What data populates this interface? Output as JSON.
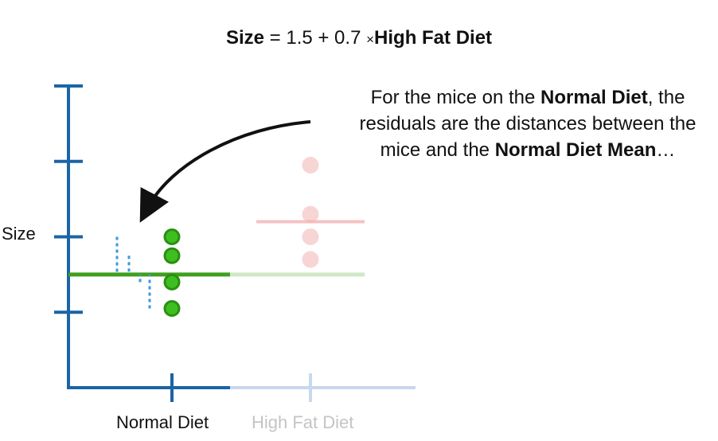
{
  "equation": {
    "lhs": "Size",
    "equals": "= 1.5 + 0.7",
    "times": "×",
    "rhs": "High Fat Diet"
  },
  "annotation": {
    "line1_pre": "For the mice on the ",
    "line1_bold": "Normal Diet",
    "line1_post": ", the",
    "line2": "residuals are the distances between the",
    "line3_pre": "mice and the ",
    "line3_bold": "Normal Diet Mean",
    "line3_post": "…"
  },
  "chart_data": {
    "type": "scatter",
    "ylabel": "Size",
    "categories": [
      "Normal Diet",
      "High Fat Diet"
    ],
    "highlighted_category": "Normal Diet",
    "ylim": [
      0,
      4
    ],
    "y_ticks": [
      1,
      2,
      3,
      4
    ],
    "y_tick_labels": {
      "2": "Size"
    },
    "series": [
      {
        "category": "Normal Diet",
        "values": [
          2.0,
          1.75,
          1.4,
          1.05
        ],
        "mean": 1.5,
        "color": "#3fbf1f",
        "stroke": "#2a8f12",
        "opacity": 1.0
      },
      {
        "category": "High Fat Diet",
        "values": [
          2.95,
          2.3,
          2.0,
          1.7
        ],
        "mean": 2.2,
        "color": "#f4b3b3",
        "stroke": "#f4b3b3",
        "opacity": 0.55
      }
    ],
    "reference_line": {
      "value": 1.5,
      "color": "#3f9f1f",
      "faded_color": "#cfe9c7"
    },
    "residuals": [
      {
        "value": 2.0,
        "label": ""
      },
      {
        "value": 1.75,
        "label": ""
      },
      {
        "value": 1.4,
        "label": ""
      },
      {
        "value": 1.05,
        "label": ""
      }
    ],
    "residual_color": "#3a9ad9",
    "axis_color": "#1b64a6",
    "axis_faded_color": "#c7d8ee",
    "arrow_color": "#111111"
  }
}
